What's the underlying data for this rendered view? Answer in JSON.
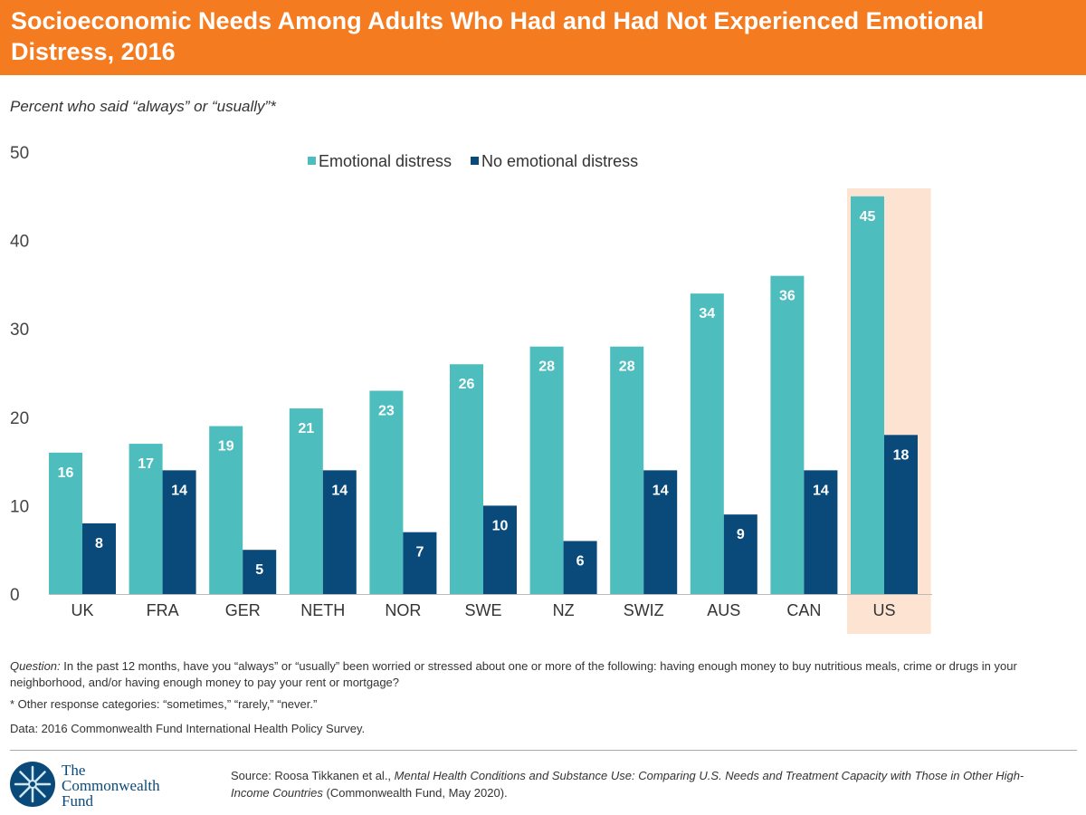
{
  "title": "Socioeconomic Needs Among Adults Who Had and Had Not Experienced Emotional Distress, 2016",
  "subtitle": "Percent who said “always” or “usually”*",
  "colors": {
    "header": "#F47B20",
    "emotional_distress": "#4DBDBD",
    "no_emotional_distress": "#0A4A7A",
    "highlight": "#FDE3D2"
  },
  "chart_data": {
    "type": "bar",
    "categories": [
      "UK",
      "FRA",
      "GER",
      "NETH",
      "NOR",
      "SWE",
      "NZ",
      "SWIZ",
      "AUS",
      "CAN",
      "US"
    ],
    "series": [
      {
        "name": "Emotional distress",
        "values": [
          16,
          17,
          19,
          21,
          23,
          26,
          28,
          28,
          34,
          36,
          45
        ]
      },
      {
        "name": "No emotional distress",
        "values": [
          8,
          14,
          5,
          14,
          7,
          10,
          6,
          14,
          9,
          14,
          18
        ]
      }
    ],
    "yticks": [
      0,
      10,
      20,
      30,
      40,
      50
    ],
    "ylim": [
      0,
      50
    ],
    "grid": false,
    "legend_position": "top-center",
    "highlighted_category": "US"
  },
  "footer": {
    "question_label": "Question:",
    "question": " In the past 12 months, have you “always” or “usually” been worried or stressed about one or more of the following: having enough money to buy nutritious meals, crime or drugs in your neighborhood, and/or having enough money to pay your rent or mortgage?",
    "note": "* Other response categories: “sometimes,” “rarely,” “never.”",
    "data": "Data: 2016 Commonwealth Fund International Health Policy Survey.",
    "source_prefix": "Source: Roosa Tikkanen et al., ",
    "source_title": "Mental Health Conditions and Substance Use: Comparing U.S. Needs and Treatment Capacity with Those in Other High-Income Countries",
    "source_suffix": " (Commonwealth Fund, May 2020)."
  },
  "logo": {
    "line1": "The",
    "line2": "Commonwealth",
    "line3": "Fund"
  }
}
